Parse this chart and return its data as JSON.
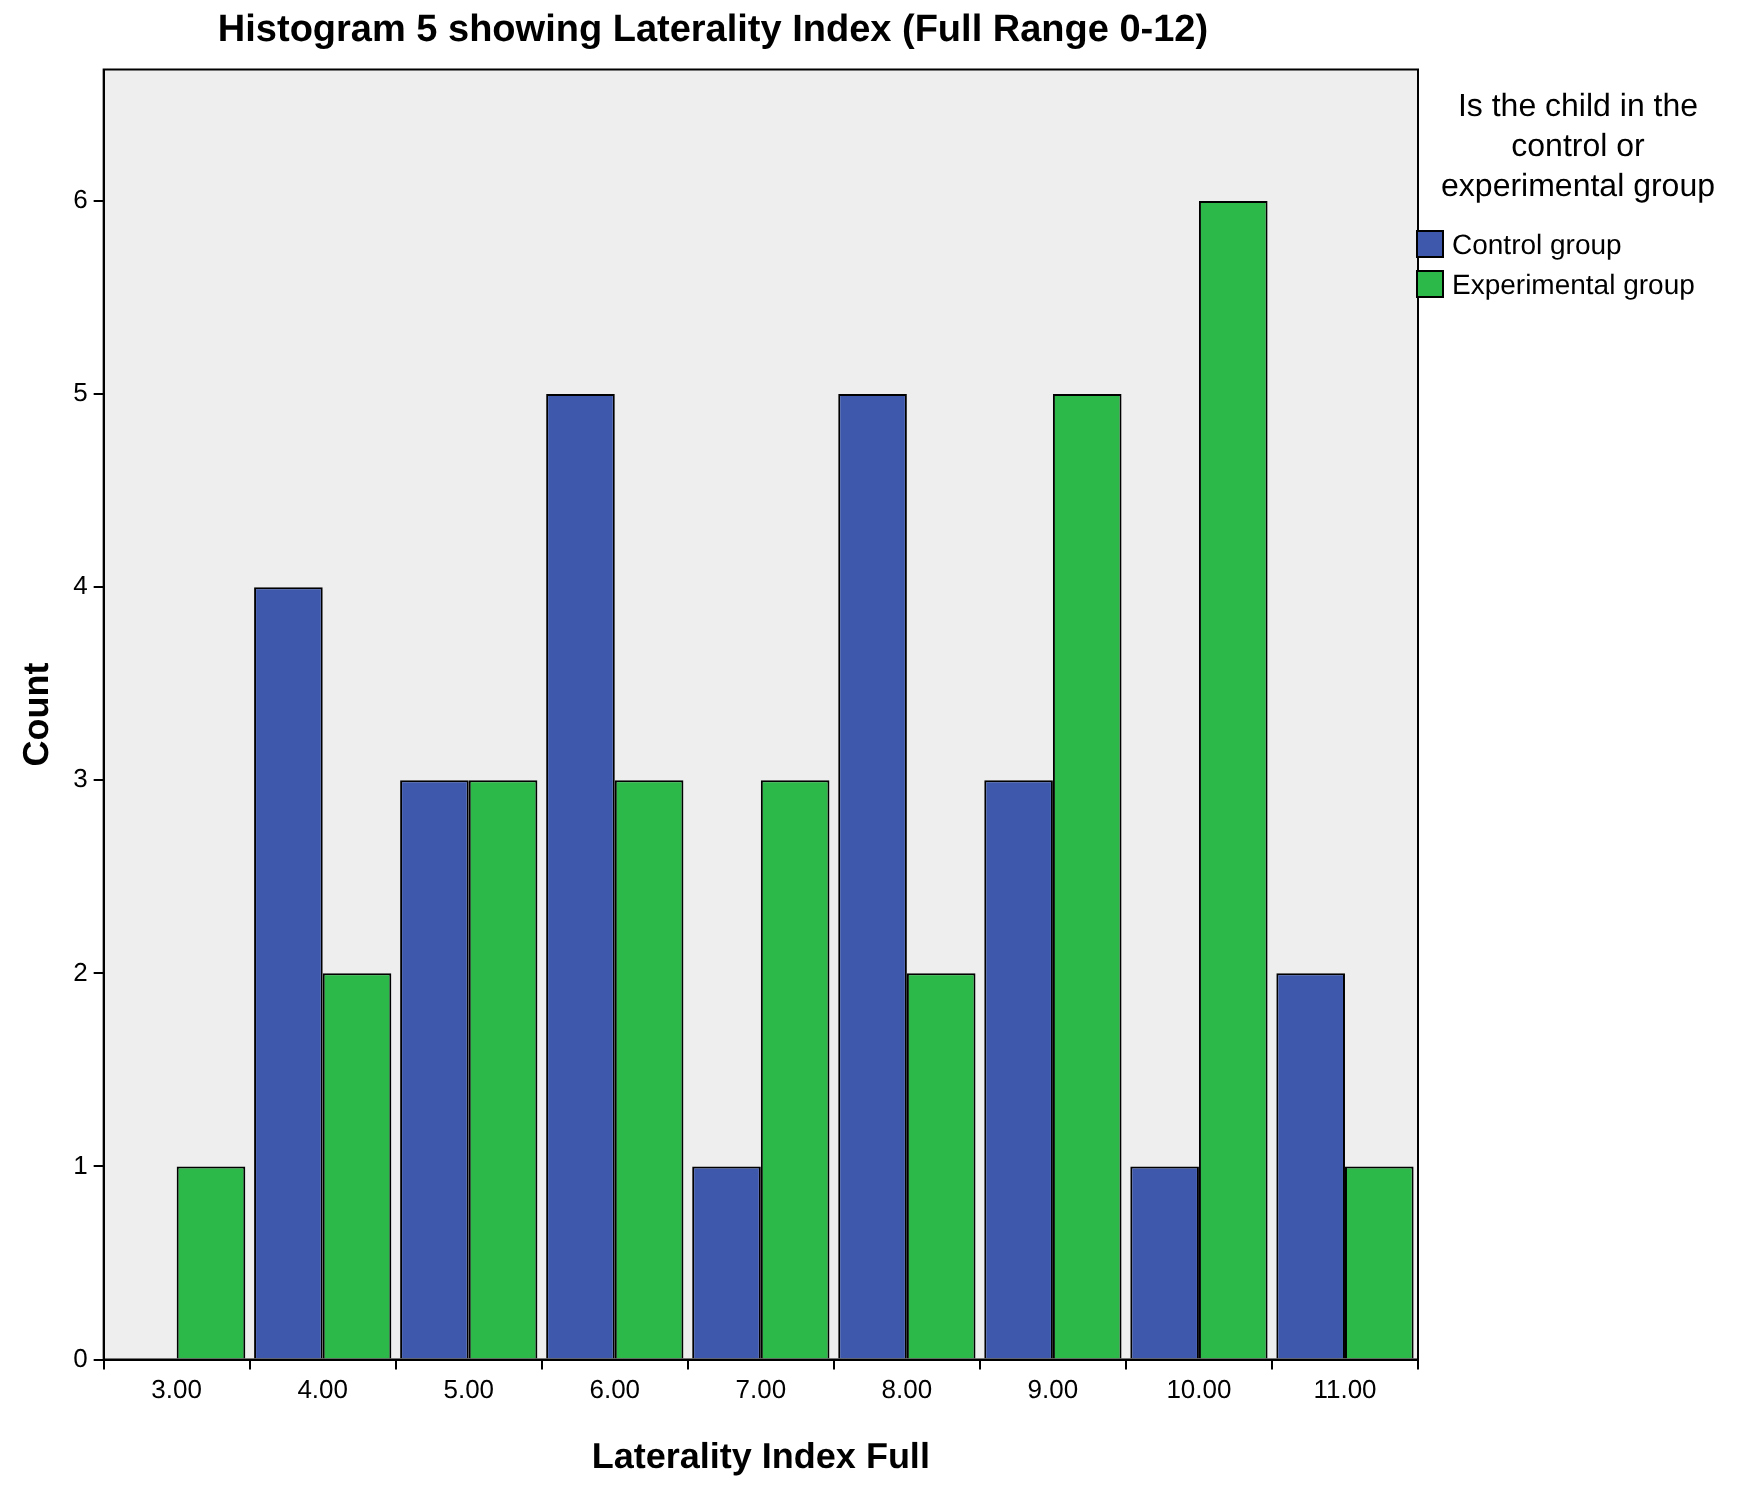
{
  "chart_data": {
    "type": "bar",
    "title": "Histogram 5 showing Laterality Index (Full Range 0-12)",
    "xlabel": "Laterality Index Full",
    "ylabel": "Count",
    "legend_title": "Is the child in the control or experimental group",
    "categories": [
      "3.00",
      "4.00",
      "5.00",
      "6.00",
      "7.00",
      "8.00",
      "9.00",
      "10.00",
      "11.00"
    ],
    "series": [
      {
        "name": "Control group",
        "color": "#3e58ac",
        "values": [
          0,
          4,
          3,
          5,
          1,
          5,
          3,
          1,
          2
        ]
      },
      {
        "name": "Experimental group",
        "color": "#2db84a",
        "values": [
          1,
          2,
          3,
          3,
          3,
          2,
          5,
          6,
          1
        ]
      }
    ],
    "ylim": [
      0,
      6.68
    ],
    "yticks": [
      0,
      1,
      2,
      3,
      4,
      5,
      6
    ],
    "grid": false,
    "legend": "right"
  }
}
